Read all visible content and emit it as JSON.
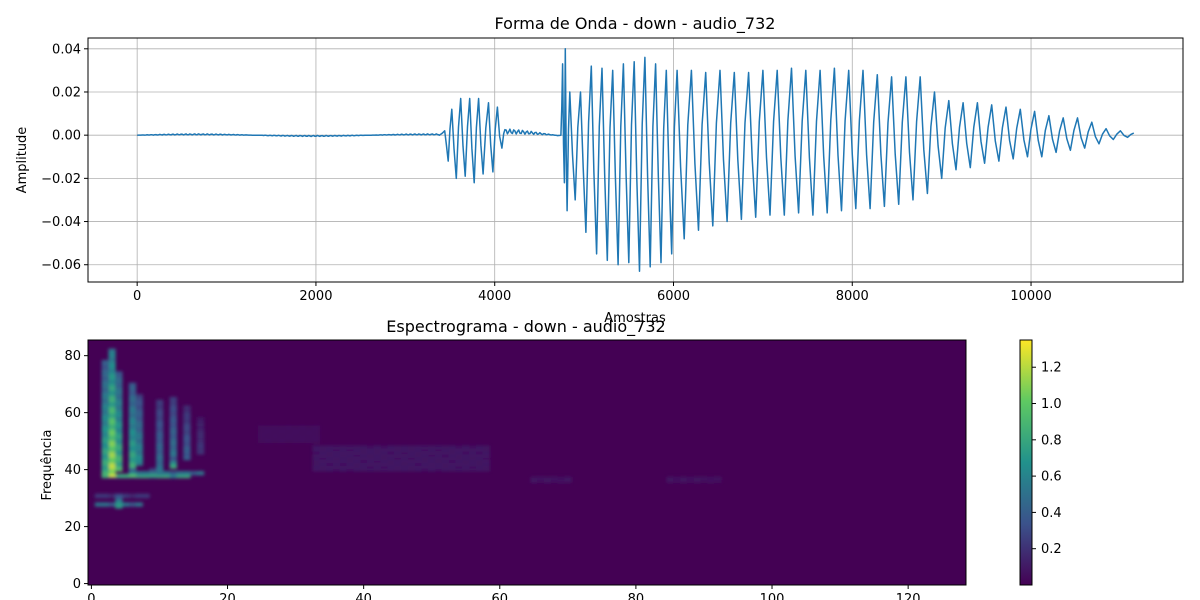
{
  "chart_data": [
    {
      "type": "line",
      "title": "Forma de Onda - down - audio_732",
      "xlabel": "Amostras",
      "ylabel": "Amplitude",
      "xlim": [
        -550,
        11700
      ],
      "ylim": [
        -0.068,
        0.045
      ],
      "xticks": [
        0,
        2000,
        4000,
        6000,
        8000,
        10000
      ],
      "yticks": [
        -0.06,
        -0.04,
        -0.02,
        0.0,
        0.02,
        0.04
      ],
      "xtick_labels": [
        "0",
        "2000",
        "4000",
        "6000",
        "8000",
        "10000"
      ],
      "ytick_labels": [
        "−0.06",
        "−0.04",
        "−0.02",
        "0.00",
        "0.02",
        "0.04"
      ],
      "grid": true,
      "series": [
        {
          "color": "#1f77b4",
          "num_samples": 11150,
          "segments": [
            {
              "start": 0,
              "end": 3380,
              "amplitude": 0.0006
            },
            {
              "start": 3380,
              "end": 4100,
              "peaks": [
                {
                  "x": 3440,
                  "y": 0.002
                },
                {
                  "x": 3480,
                  "y": -0.012
                },
                {
                  "x": 3520,
                  "y": 0.012
                },
                {
                  "x": 3570,
                  "y": -0.02
                },
                {
                  "x": 3620,
                  "y": 0.017
                },
                {
                  "x": 3670,
                  "y": -0.019
                },
                {
                  "x": 3720,
                  "y": 0.017
                },
                {
                  "x": 3770,
                  "y": -0.022
                },
                {
                  "x": 3820,
                  "y": 0.017
                },
                {
                  "x": 3870,
                  "y": -0.018
                },
                {
                  "x": 3930,
                  "y": 0.015
                },
                {
                  "x": 3980,
                  "y": -0.017
                },
                {
                  "x": 4030,
                  "y": 0.013
                },
                {
                  "x": 4080,
                  "y": -0.006
                }
              ]
            },
            {
              "start": 4100,
              "end": 4740,
              "amplitude": 0.003
            },
            {
              "start": 4740,
              "end": 11150,
              "peaks": [
                {
                  "x": 4760,
                  "y": 0.033
                },
                {
                  "x": 4780,
                  "y": -0.022
                },
                {
                  "x": 4790,
                  "y": 0.04
                },
                {
                  "x": 4810,
                  "y": -0.035
                },
                {
                  "x": 4840,
                  "y": 0.02
                },
                {
                  "x": 4900,
                  "y": -0.03
                },
                {
                  "x": 4960,
                  "y": 0.02
                },
                {
                  "x": 5020,
                  "y": -0.045
                },
                {
                  "x": 5080,
                  "y": 0.032
                },
                {
                  "x": 5140,
                  "y": -0.055
                },
                {
                  "x": 5200,
                  "y": 0.031
                },
                {
                  "x": 5260,
                  "y": -0.058
                },
                {
                  "x": 5320,
                  "y": 0.03
                },
                {
                  "x": 5380,
                  "y": -0.06
                },
                {
                  "x": 5440,
                  "y": 0.033
                },
                {
                  "x": 5500,
                  "y": -0.059
                },
                {
                  "x": 5560,
                  "y": 0.034
                },
                {
                  "x": 5620,
                  "y": -0.063
                },
                {
                  "x": 5680,
                  "y": 0.036
                },
                {
                  "x": 5740,
                  "y": -0.061
                },
                {
                  "x": 5800,
                  "y": 0.033
                },
                {
                  "x": 5860,
                  "y": -0.059
                },
                {
                  "x": 5920,
                  "y": 0.03
                },
                {
                  "x": 5980,
                  "y": -0.055
                },
                {
                  "x": 6040,
                  "y": 0.03
                },
                {
                  "x": 6120,
                  "y": -0.048
                },
                {
                  "x": 6200,
                  "y": 0.03
                },
                {
                  "x": 6280,
                  "y": -0.044
                },
                {
                  "x": 6360,
                  "y": 0.029
                },
                {
                  "x": 6440,
                  "y": -0.042
                },
                {
                  "x": 6520,
                  "y": 0.03
                },
                {
                  "x": 6600,
                  "y": -0.04
                },
                {
                  "x": 6680,
                  "y": 0.029
                },
                {
                  "x": 6760,
                  "y": -0.039
                },
                {
                  "x": 6840,
                  "y": 0.029
                },
                {
                  "x": 6920,
                  "y": -0.038
                },
                {
                  "x": 7000,
                  "y": 0.03
                },
                {
                  "x": 7080,
                  "y": -0.037
                },
                {
                  "x": 7160,
                  "y": 0.03
                },
                {
                  "x": 7240,
                  "y": -0.037
                },
                {
                  "x": 7320,
                  "y": 0.031
                },
                {
                  "x": 7400,
                  "y": -0.036
                },
                {
                  "x": 7480,
                  "y": 0.03
                },
                {
                  "x": 7560,
                  "y": -0.037
                },
                {
                  "x": 7640,
                  "y": 0.03
                },
                {
                  "x": 7720,
                  "y": -0.036
                },
                {
                  "x": 7800,
                  "y": 0.031
                },
                {
                  "x": 7880,
                  "y": -0.035
                },
                {
                  "x": 7960,
                  "y": 0.03
                },
                {
                  "x": 8040,
                  "y": -0.034
                },
                {
                  "x": 8120,
                  "y": 0.03
                },
                {
                  "x": 8200,
                  "y": -0.034
                },
                {
                  "x": 8280,
                  "y": 0.028
                },
                {
                  "x": 8360,
                  "y": -0.033
                },
                {
                  "x": 8440,
                  "y": 0.027
                },
                {
                  "x": 8520,
                  "y": -0.032
                },
                {
                  "x": 8600,
                  "y": 0.027
                },
                {
                  "x": 8680,
                  "y": -0.03
                },
                {
                  "x": 8760,
                  "y": 0.027
                },
                {
                  "x": 8840,
                  "y": -0.027
                },
                {
                  "x": 8920,
                  "y": 0.02
                },
                {
                  "x": 9000,
                  "y": -0.02
                },
                {
                  "x": 9080,
                  "y": 0.016
                },
                {
                  "x": 9160,
                  "y": -0.016
                },
                {
                  "x": 9240,
                  "y": 0.015
                },
                {
                  "x": 9320,
                  "y": -0.015
                },
                {
                  "x": 9400,
                  "y": 0.015
                },
                {
                  "x": 9480,
                  "y": -0.013
                },
                {
                  "x": 9560,
                  "y": 0.014
                },
                {
                  "x": 9640,
                  "y": -0.012
                },
                {
                  "x": 9720,
                  "y": 0.013
                },
                {
                  "x": 9800,
                  "y": -0.011
                },
                {
                  "x": 9880,
                  "y": 0.012
                },
                {
                  "x": 9960,
                  "y": -0.01
                },
                {
                  "x": 10040,
                  "y": 0.011
                },
                {
                  "x": 10120,
                  "y": -0.01
                },
                {
                  "x": 10200,
                  "y": 0.009
                },
                {
                  "x": 10280,
                  "y": -0.008
                },
                {
                  "x": 10360,
                  "y": 0.008
                },
                {
                  "x": 10440,
                  "y": -0.007
                },
                {
                  "x": 10520,
                  "y": 0.008
                },
                {
                  "x": 10600,
                  "y": -0.006
                },
                {
                  "x": 10680,
                  "y": 0.006
                },
                {
                  "x": 10760,
                  "y": -0.004
                },
                {
                  "x": 10840,
                  "y": 0.003
                },
                {
                  "x": 10920,
                  "y": -0.002
                },
                {
                  "x": 11000,
                  "y": 0.002
                },
                {
                  "x": 11080,
                  "y": -0.001
                },
                {
                  "x": 11150,
                  "y": 0.001
                }
              ]
            }
          ]
        }
      ]
    },
    {
      "type": "heatmap",
      "title": "Espectrograma - down - audio_732",
      "xlabel": "",
      "ylabel": "Frequência",
      "xlim": [
        -0.5,
        128.5
      ],
      "ylim": [
        -0.5,
        85.5
      ],
      "xticks": [
        0,
        20,
        40,
        60,
        80,
        100,
        120
      ],
      "yticks": [
        0,
        20,
        40,
        60,
        80
      ],
      "xtick_labels": [
        "0",
        "20",
        "40",
        "60",
        "80",
        "100",
        "120"
      ],
      "ytick_labels": [
        "0",
        "20",
        "40",
        "60",
        "80"
      ],
      "colormap": "viridis",
      "colorbar_range": [
        0.0,
        1.35
      ],
      "colorbar_ticks": [
        0.2,
        0.4,
        0.6,
        0.8,
        1.0,
        1.2
      ],
      "colorbar_tick_labels": [
        "0.2",
        "0.4",
        "0.6",
        "0.8",
        "1.0",
        "1.2"
      ],
      "n_time": 129,
      "n_freq": 86,
      "features": [
        {
          "t": 3,
          "f0": 38,
          "f1": 82,
          "peak": 1.3
        },
        {
          "t": 2,
          "f0": 38,
          "f1": 78,
          "peak": 0.9
        },
        {
          "t": 4,
          "f0": 40,
          "f1": 74,
          "peak": 0.95
        },
        {
          "t": 6,
          "f0": 40,
          "f1": 70,
          "peak": 0.9
        },
        {
          "t": 7,
          "f0": 42,
          "f1": 66,
          "peak": 0.7
        },
        {
          "t": 10,
          "f0": 40,
          "f1": 64,
          "peak": 0.55
        },
        {
          "t": 12,
          "f0": 42,
          "f1": 65,
          "peak": 0.6
        },
        {
          "t": 14,
          "f0": 44,
          "f1": 62,
          "peak": 0.45
        },
        {
          "t": 16,
          "f0": 46,
          "f1": 58,
          "peak": 0.25
        },
        {
          "t": 4,
          "f0": 27,
          "f1": 31,
          "peak": 0.85
        },
        {
          "t": 6,
          "f0": 38,
          "f1": 40,
          "peak": 1.0
        },
        {
          "t": 9,
          "f0": 38,
          "f1": 40,
          "peak": 0.8
        },
        {
          "t": 12,
          "f0": 41,
          "f1": 44,
          "peak": 0.9
        }
      ],
      "bands": [
        {
          "t0": 2,
          "t1": 14,
          "f": 38,
          "peak": 0.85
        },
        {
          "t0": 1,
          "t1": 7,
          "f": 28,
          "peak": 0.55
        },
        {
          "t0": 1,
          "t1": 8,
          "f": 31,
          "peak": 0.25
        },
        {
          "t0": 6,
          "t1": 16,
          "f": 39,
          "peak": 0.55
        }
      ],
      "faint_regions": [
        {
          "t0": 33,
          "t1": 58,
          "f0": 40,
          "f1": 48,
          "level": 0.1
        },
        {
          "t0": 25,
          "t1": 33,
          "f0": 50,
          "f1": 55,
          "level": 0.06
        },
        {
          "t0": 65,
          "t1": 70,
          "f0": 36,
          "f1": 37,
          "level": 0.09
        },
        {
          "t0": 85,
          "t1": 92,
          "f0": 36,
          "f1": 37,
          "level": 0.08
        }
      ]
    }
  ]
}
